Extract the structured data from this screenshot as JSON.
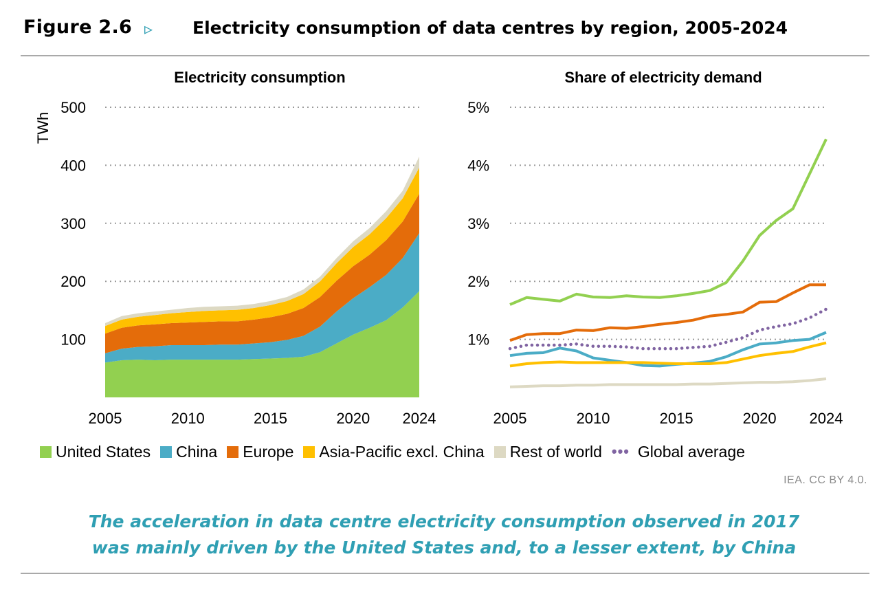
{
  "figure": {
    "label": "Figure 2.6",
    "arrow": "▹",
    "title": "Electricity consumption of data centres by region, 2005-2024",
    "source": "IEA. CC BY 4.0.",
    "caption_line1": "The acceleration in data centre electricity consumption observed in 2017",
    "caption_line2": "was mainly driven by the United States and, to a lesser extent, by China"
  },
  "legend": [
    {
      "label": "United States",
      "color": "#92d050",
      "style": "swatch"
    },
    {
      "label": "China",
      "color": "#4bacc6",
      "style": "swatch"
    },
    {
      "label": "Europe",
      "color": "#e46c0a",
      "style": "swatch"
    },
    {
      "label": "Asia-Pacific excl. China",
      "color": "#ffc000",
      "style": "swatch"
    },
    {
      "label": "Rest of world",
      "color": "#ddd9c3",
      "style": "swatch"
    },
    {
      "label": "Global average",
      "color": "#8064a2",
      "style": "dots"
    }
  ],
  "chart_data": [
    {
      "type": "area",
      "stacked": true,
      "title": "Electricity consumption",
      "ylabel": "TWh",
      "xlabel": "",
      "ylim": [
        0,
        500
      ],
      "yticks": [
        100,
        200,
        300,
        400,
        500
      ],
      "yticklabels": [
        "100",
        "200",
        "300",
        "400",
        "500"
      ],
      "xticks": [
        2005,
        2010,
        2015,
        2020,
        2024
      ],
      "xticklabels": [
        "2005",
        "2010",
        "2015",
        "2020",
        "2024"
      ],
      "grid": true,
      "x": [
        2005,
        2006,
        2007,
        2008,
        2009,
        2010,
        2011,
        2012,
        2013,
        2014,
        2015,
        2016,
        2017,
        2018,
        2019,
        2020,
        2021,
        2022,
        2023,
        2024
      ],
      "series": [
        {
          "name": "United States",
          "color": "#92d050",
          "values": [
            60,
            64,
            65,
            64,
            65,
            65,
            65,
            65,
            65,
            66,
            67,
            68,
            70,
            78,
            93,
            108,
            120,
            133,
            155,
            183
          ]
        },
        {
          "name": "China",
          "color": "#4bacc6",
          "values": [
            16,
            20,
            22,
            24,
            25,
            25,
            25,
            26,
            26,
            27,
            28,
            31,
            36,
            44,
            55,
            63,
            70,
            78,
            85,
            100
          ]
        },
        {
          "name": "Europe",
          "color": "#e46c0a",
          "values": [
            34,
            36,
            37,
            38,
            38,
            39,
            40,
            40,
            40,
            41,
            43,
            45,
            48,
            51,
            53,
            55,
            56,
            60,
            63,
            68
          ]
        },
        {
          "name": "Asia-Pacific excl. China",
          "color": "#ffc000",
          "values": [
            13,
            14,
            15,
            16,
            17,
            18,
            19,
            19,
            20,
            20,
            21,
            22,
            24,
            27,
            30,
            33,
            35,
            38,
            40,
            45
          ]
        },
        {
          "name": "Rest of world",
          "color": "#ddd9c3",
          "values": [
            5,
            6,
            6,
            6,
            6,
            7,
            7,
            7,
            7,
            7,
            7,
            7,
            8,
            8,
            9,
            10,
            11,
            12,
            13,
            19
          ]
        }
      ]
    },
    {
      "type": "line",
      "title": "Share of electricity demand",
      "ylabel": "",
      "xlabel": "",
      "ylim": [
        0,
        5
      ],
      "yticks": [
        1,
        2,
        3,
        4,
        5
      ],
      "yticklabels": [
        "1%",
        "2%",
        "3%",
        "4%",
        "5%"
      ],
      "xticks": [
        2005,
        2010,
        2015,
        2020,
        2024
      ],
      "xticklabels": [
        "2005",
        "2010",
        "2015",
        "2020",
        "2024"
      ],
      "grid": true,
      "x": [
        2005,
        2006,
        2007,
        2008,
        2009,
        2010,
        2011,
        2012,
        2013,
        2014,
        2015,
        2016,
        2017,
        2018,
        2019,
        2020,
        2021,
        2022,
        2023,
        2024
      ],
      "series": [
        {
          "name": "United States",
          "color": "#92d050",
          "style": "solid",
          "values": [
            1.6,
            1.72,
            1.69,
            1.66,
            1.78,
            1.73,
            1.72,
            1.75,
            1.73,
            1.72,
            1.75,
            1.79,
            1.84,
            1.98,
            2.35,
            2.79,
            3.05,
            3.25,
            3.85,
            4.45
          ]
        },
        {
          "name": "China",
          "color": "#4bacc6",
          "style": "solid",
          "values": [
            0.72,
            0.76,
            0.77,
            0.85,
            0.8,
            0.68,
            0.64,
            0.6,
            0.55,
            0.54,
            0.57,
            0.59,
            0.62,
            0.7,
            0.82,
            0.92,
            0.94,
            0.98,
            1.0,
            1.12
          ]
        },
        {
          "name": "Europe",
          "color": "#e46c0a",
          "style": "solid",
          "values": [
            0.98,
            1.08,
            1.1,
            1.1,
            1.16,
            1.15,
            1.2,
            1.19,
            1.22,
            1.26,
            1.29,
            1.33,
            1.4,
            1.43,
            1.47,
            1.64,
            1.65,
            1.8,
            1.94,
            1.94
          ]
        },
        {
          "name": "Asia-Pacific excl. China",
          "color": "#ffc000",
          "style": "solid",
          "values": [
            0.54,
            0.58,
            0.6,
            0.61,
            0.6,
            0.6,
            0.6,
            0.6,
            0.6,
            0.59,
            0.58,
            0.58,
            0.58,
            0.6,
            0.66,
            0.72,
            0.76,
            0.79,
            0.87,
            0.94
          ]
        },
        {
          "name": "Rest of world",
          "color": "#ddd9c3",
          "style": "solid",
          "values": [
            0.18,
            0.19,
            0.2,
            0.2,
            0.21,
            0.21,
            0.22,
            0.22,
            0.22,
            0.22,
            0.22,
            0.23,
            0.23,
            0.24,
            0.25,
            0.26,
            0.26,
            0.27,
            0.29,
            0.32
          ]
        },
        {
          "name": "Global average",
          "color": "#8064a2",
          "style": "dotted",
          "values": [
            0.84,
            0.9,
            0.9,
            0.9,
            0.92,
            0.88,
            0.88,
            0.87,
            0.84,
            0.84,
            0.84,
            0.86,
            0.88,
            0.95,
            1.03,
            1.16,
            1.22,
            1.27,
            1.37,
            1.52
          ]
        }
      ]
    }
  ]
}
